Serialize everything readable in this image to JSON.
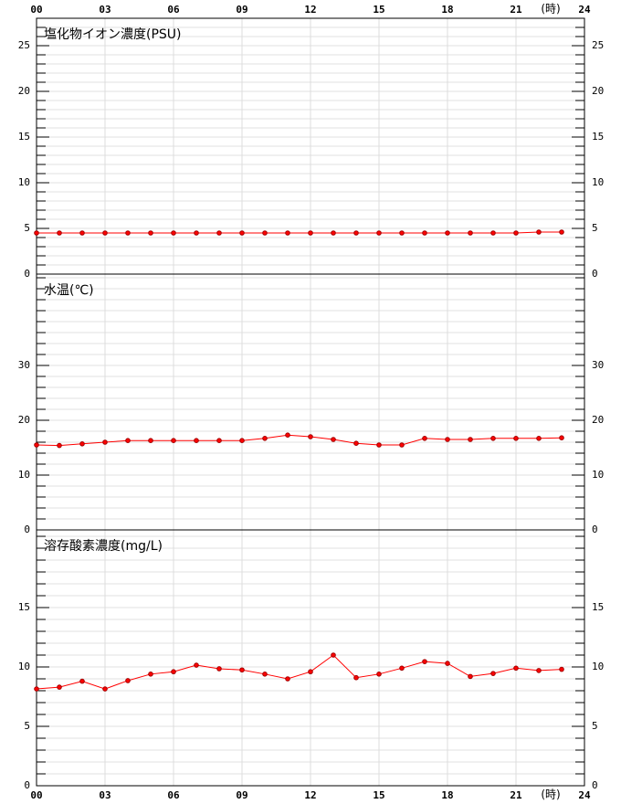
{
  "chart_data": [
    {
      "type": "line",
      "title": "塩化物イオン濃度(PSU)",
      "x_label": "(時)",
      "x": [
        0,
        1,
        2,
        3,
        4,
        5,
        6,
        7,
        8,
        9,
        10,
        11,
        12,
        13,
        14,
        15,
        16,
        17,
        18,
        19,
        20,
        21,
        22,
        23
      ],
      "xlim": [
        0,
        24
      ],
      "xticks": [
        {
          "value": 0,
          "label": "00"
        },
        {
          "value": 3,
          "label": "03"
        },
        {
          "value": 6,
          "label": "06"
        },
        {
          "value": 9,
          "label": "09"
        },
        {
          "value": 12,
          "label": "12"
        },
        {
          "value": 15,
          "label": "15"
        },
        {
          "value": 18,
          "label": "18"
        },
        {
          "value": 21,
          "label": "21"
        },
        {
          "value": 24,
          "label": "24"
        }
      ],
      "ylim": [
        0,
        28
      ],
      "yticks": [
        0,
        5,
        10,
        15,
        20,
        25
      ],
      "yminor_step": 1,
      "grid": true,
      "series": [
        {
          "color": "#ff0000",
          "values": [
            4.5,
            4.5,
            4.5,
            4.5,
            4.5,
            4.5,
            4.5,
            4.5,
            4.5,
            4.5,
            4.5,
            4.5,
            4.5,
            4.5,
            4.5,
            4.5,
            4.5,
            4.5,
            4.5,
            4.5,
            4.5,
            4.5,
            4.6,
            4.6
          ]
        }
      ]
    },
    {
      "type": "line",
      "title": "水温(℃)",
      "x": [
        0,
        1,
        2,
        3,
        4,
        5,
        6,
        7,
        8,
        9,
        10,
        11,
        12,
        13,
        14,
        15,
        16,
        17,
        18,
        19,
        20,
        21,
        22,
        23
      ],
      "xlim": [
        0,
        24
      ],
      "xticks": [
        0,
        3,
        6,
        9,
        12,
        15,
        18,
        21,
        24
      ],
      "ylim": [
        0,
        46.67
      ],
      "yticks": [
        0,
        10,
        20,
        30
      ],
      "yminor_step": 2,
      "grid": true,
      "series": [
        {
          "color": "#ff0000",
          "values": [
            15.5,
            15.4,
            15.7,
            16.0,
            16.3,
            16.3,
            16.3,
            16.3,
            16.3,
            16.3,
            16.7,
            17.3,
            17.0,
            16.5,
            15.8,
            15.5,
            15.5,
            16.7,
            16.5,
            16.5,
            16.7,
            16.7,
            16.7,
            16.8
          ]
        }
      ]
    },
    {
      "type": "line",
      "title": "溶存酸素濃度(mg/L)",
      "x_label": "(時)",
      "x": [
        0,
        1,
        2,
        3,
        4,
        5,
        6,
        7,
        8,
        9,
        10,
        11,
        12,
        13,
        14,
        15,
        16,
        17,
        18,
        19,
        20,
        21,
        22,
        23
      ],
      "xlim": [
        0,
        24
      ],
      "xticks": [
        {
          "value": 0,
          "label": "00"
        },
        {
          "value": 3,
          "label": "03"
        },
        {
          "value": 6,
          "label": "06"
        },
        {
          "value": 9,
          "label": "09"
        },
        {
          "value": 12,
          "label": "12"
        },
        {
          "value": 15,
          "label": "15"
        },
        {
          "value": 18,
          "label": "18"
        },
        {
          "value": 21,
          "label": "21"
        },
        {
          "value": 24,
          "label": "24"
        }
      ],
      "ylim": [
        0,
        21.54
      ],
      "yticks": [
        0,
        5,
        10,
        15
      ],
      "yminor_step": 1,
      "grid": true,
      "series": [
        {
          "color": "#ff0000",
          "values": [
            8.15,
            8.3,
            8.8,
            8.15,
            8.85,
            9.4,
            9.6,
            10.15,
            9.85,
            9.75,
            9.4,
            9.0,
            9.6,
            11.0,
            9.1,
            9.4,
            9.9,
            10.45,
            10.3,
            9.2,
            9.45,
            9.9,
            9.7,
            9.8
          ]
        }
      ]
    }
  ]
}
